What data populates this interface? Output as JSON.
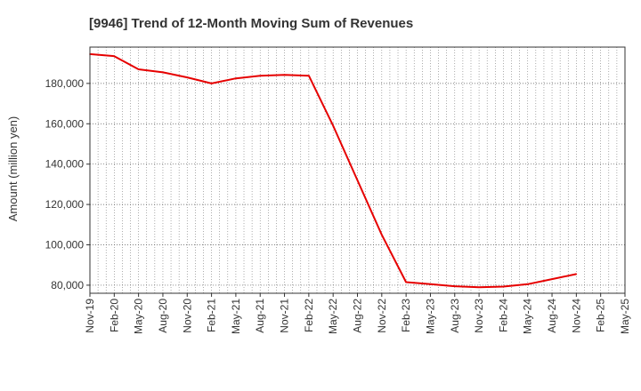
{
  "chart_data": {
    "type": "line",
    "title": "[9946]  Trend of 12-Month Moving Sum of Revenues",
    "xlabel": "",
    "ylabel": "Amount (million yen)",
    "ylim": [
      76000,
      198000
    ],
    "yticks": [
      80000,
      100000,
      120000,
      140000,
      160000,
      180000
    ],
    "ytick_labels": [
      "80,000",
      "100,000",
      "120,000",
      "140,000",
      "160,000",
      "180,000"
    ],
    "xticks": [
      "Nov-19",
      "Feb-20",
      "May-20",
      "Aug-20",
      "Nov-20",
      "Feb-21",
      "May-21",
      "Aug-21",
      "Nov-21",
      "Feb-22",
      "May-22",
      "Aug-22",
      "Nov-22",
      "Feb-23",
      "May-23",
      "Aug-23",
      "Nov-23",
      "Feb-24",
      "May-24",
      "Aug-24",
      "Nov-24",
      "Feb-25",
      "May-25"
    ],
    "grid": true,
    "series": [
      {
        "color": "#e60000",
        "x": [
          "Nov-19",
          "Feb-20",
          "May-20",
          "Aug-20",
          "Nov-20",
          "Feb-21",
          "May-21",
          "Aug-21",
          "Nov-21",
          "Feb-22",
          "May-22",
          "Aug-22",
          "Nov-22",
          "Feb-23",
          "May-23",
          "Aug-23",
          "Nov-23",
          "Feb-24",
          "May-24",
          "Aug-24",
          "Nov-24"
        ],
        "values": [
          194500,
          193500,
          187000,
          185500,
          183000,
          180000,
          182500,
          183800,
          184200,
          183800,
          159000,
          132000,
          105000,
          81500,
          80500,
          79500,
          79000,
          79300,
          80500,
          83000,
          85500
        ]
      }
    ]
  }
}
